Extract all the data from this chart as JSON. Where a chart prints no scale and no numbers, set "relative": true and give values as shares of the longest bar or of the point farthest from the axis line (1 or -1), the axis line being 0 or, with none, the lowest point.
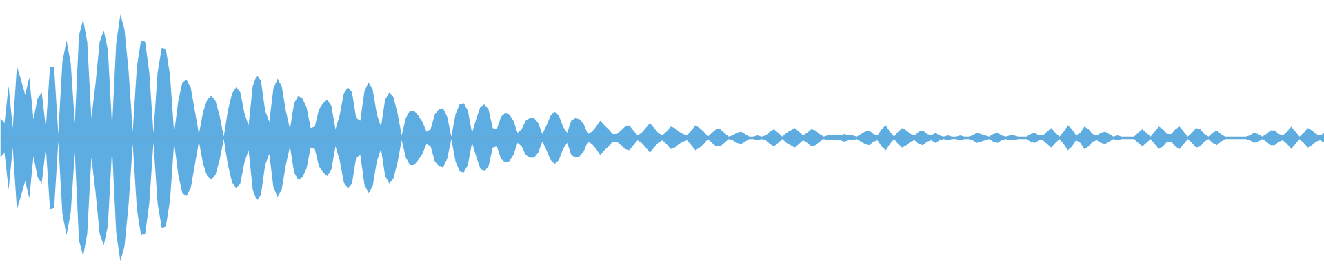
{
  "chart_data": {
    "type": "area",
    "relative": true,
    "tick_labels": false,
    "categories": [
      null,
      null,
      null,
      null,
      null,
      null,
      null,
      null,
      null,
      null,
      null,
      null,
      null,
      null,
      null,
      null,
      null,
      null,
      null,
      null,
      null,
      null,
      null,
      null,
      null,
      null,
      null,
      null,
      null,
      null,
      null,
      null,
      null,
      null,
      null,
      null,
      null,
      null,
      null,
      null,
      null,
      null,
      null,
      null,
      null,
      null,
      null,
      null,
      null,
      null,
      null,
      null,
      null,
      null,
      null,
      null,
      null,
      null,
      null,
      null,
      null,
      null,
      null,
      null,
      null,
      null,
      null,
      null,
      null,
      null,
      null,
      null,
      null,
      null,
      null,
      null,
      null,
      null,
      null,
      null,
      null,
      null,
      null,
      null,
      null,
      null,
      null,
      null,
      null,
      null,
      null,
      null,
      null,
      null,
      null,
      null,
      null,
      null,
      null,
      null,
      null,
      null,
      null,
      null,
      null,
      null,
      null,
      null,
      null,
      null,
      null,
      null,
      null,
      null,
      null,
      null,
      null,
      null,
      null,
      null,
      null,
      null,
      null,
      null,
      null,
      null,
      null,
      null,
      null,
      null,
      null,
      null,
      null,
      null,
      null,
      null,
      null,
      null,
      null,
      null,
      null,
      null,
      null,
      null,
      null,
      null,
      null,
      null,
      null,
      null,
      null,
      null,
      null,
      null,
      null,
      null,
      null,
      null,
      null,
      null,
      null,
      null,
      null,
      null,
      null,
      null,
      null,
      null,
      null,
      null,
      null,
      null,
      null,
      null,
      null,
      null,
      null,
      null,
      null,
      null,
      null,
      null,
      null,
      null,
      null,
      null,
      null,
      null,
      null,
      null,
      null,
      null,
      null,
      null,
      null,
      null,
      null,
      null,
      null,
      null,
      null,
      null,
      null,
      null,
      null,
      null,
      null,
      null,
      null,
      null,
      null,
      null,
      null,
      null,
      null,
      null,
      null,
      null,
      null,
      null,
      null,
      null,
      null,
      null,
      null,
      null,
      null,
      null,
      null,
      null,
      null,
      null,
      null,
      null,
      null,
      null,
      null,
      null,
      null,
      null,
      null,
      null,
      null,
      null,
      null,
      null,
      null,
      null,
      null,
      null,
      null,
      null,
      null,
      null,
      null,
      null,
      null,
      null,
      null,
      null,
      null,
      null,
      null,
      null,
      null,
      null,
      null,
      null,
      null,
      null,
      null,
      null,
      null,
      null,
      null,
      null,
      null,
      null,
      null,
      null,
      null,
      null,
      null,
      null,
      null,
      null,
      null,
      null,
      null,
      null,
      null,
      null,
      null,
      null,
      null,
      null,
      null,
      null,
      null,
      null,
      null,
      null,
      null,
      null,
      null,
      null,
      null,
      null,
      null,
      null,
      null,
      null,
      null,
      null,
      null,
      null,
      null,
      null,
      null,
      null,
      null
    ],
    "series": [
      {
        "color": "#5dade2",
        "values": [
          0.16,
          0.12,
          0.42,
          0.08,
          0.58,
          0.47,
          0.35,
          0.49,
          0.15,
          0.32,
          0.37,
          0.08,
          0.58,
          0.57,
          0.03,
          0.62,
          0.79,
          0.61,
          0.12,
          0.83,
          0.96,
          0.78,
          0.16,
          0.44,
          0.78,
          0.87,
          0.71,
          0.09,
          0.77,
          1.0,
          0.88,
          0.54,
          0.05,
          0.58,
          0.79,
          0.78,
          0.53,
          0.04,
          0.53,
          0.73,
          0.72,
          0.51,
          0.04,
          0.3,
          0.45,
          0.47,
          0.41,
          0.22,
          0.03,
          0.21,
          0.31,
          0.34,
          0.3,
          0.18,
          0.01,
          0.22,
          0.36,
          0.41,
          0.37,
          0.2,
          0.1,
          0.42,
          0.51,
          0.46,
          0.22,
          0.13,
          0.4,
          0.48,
          0.42,
          0.22,
          0.07,
          0.28,
          0.34,
          0.32,
          0.25,
          0.08,
          0.09,
          0.23,
          0.28,
          0.31,
          0.26,
          0.07,
          0.18,
          0.36,
          0.41,
          0.37,
          0.16,
          0.14,
          0.38,
          0.45,
          0.39,
          0.19,
          0.09,
          0.31,
          0.37,
          0.33,
          0.2,
          0.02,
          0.16,
          0.22,
          0.22,
          0.18,
          0.13,
          0.05,
          0.07,
          0.19,
          0.23,
          0.24,
          0.17,
          0.01,
          0.19,
          0.27,
          0.28,
          0.22,
          0.04,
          0.15,
          0.25,
          0.27,
          0.23,
          0.08,
          0.07,
          0.17,
          0.2,
          0.19,
          0.14,
          0.04,
          0.07,
          0.14,
          0.16,
          0.16,
          0.12,
          0.03,
          0.1,
          0.18,
          0.21,
          0.18,
          0.09,
          0.04,
          0.14,
          0.16,
          0.15,
          0.11,
          0.03,
          0.05,
          0.09,
          0.14,
          0.1,
          0.07,
          0.03,
          0.03,
          0.06,
          0.09,
          0.1,
          0.06,
          0.02,
          0.04,
          0.08,
          0.12,
          0.08,
          0.04,
          0.02,
          0.05,
          0.09,
          0.08,
          0.05,
          0.03,
          0.02,
          0.06,
          0.1,
          0.08,
          0.05,
          0.01,
          0.04,
          0.07,
          0.07,
          0.04,
          0.01,
          0.02,
          0.04,
          0.05,
          0.03,
          0.01,
          0.01,
          0.02,
          0.01,
          0.02,
          0.05,
          0.07,
          0.04,
          0.01,
          0.04,
          0.06,
          0.08,
          0.05,
          0.02,
          0.04,
          0.07,
          0.06,
          0.03,
          0.01,
          0.02,
          0.02,
          0.02,
          0.02,
          0.03,
          0.02,
          0.02,
          0.01,
          0.03,
          0.05,
          0.06,
          0.03,
          0.02,
          0.07,
          0.1,
          0.05,
          0.01,
          0.05,
          0.08,
          0.06,
          0.03,
          0.02,
          0.05,
          0.06,
          0.03,
          0.02,
          0.04,
          0.02,
          0.01,
          0.02,
          0.01,
          0.01,
          0.02,
          0.01,
          0.01,
          0.02,
          0.04,
          0.03,
          0.02,
          0.01,
          0.03,
          0.04,
          0.02,
          0.01,
          0.02,
          0.02,
          0.01,
          0.01,
          0.01,
          0.03,
          0.04,
          0.02,
          0.02,
          0.05,
          0.08,
          0.04,
          0.01,
          0.05,
          0.1,
          0.07,
          0.02,
          0.04,
          0.09,
          0.07,
          0.03,
          0.02,
          0.04,
          0.05,
          0.03,
          0.01,
          0.02,
          0.01,
          0.01,
          0.01,
          0.01,
          0.04,
          0.07,
          0.04,
          0.01,
          0.05,
          0.09,
          0.07,
          0.03,
          0.03,
          0.07,
          0.09,
          0.05,
          0.01,
          0.04,
          0.08,
          0.07,
          0.03,
          0.01,
          0.04,
          0.06,
          0.03,
          0.01,
          0.01,
          0.01,
          0.01,
          0.01,
          0.01,
          0.02,
          0.04,
          0.03,
          0.01,
          0.03,
          0.06,
          0.06,
          0.03,
          0.02,
          0.05,
          0.09,
          0.05,
          0.01,
          0.04,
          0.08,
          0.06,
          0.03,
          0.02,
          0.04
        ]
      },
      {
        "color": "#5eade2",
        "values": [
          -0.16,
          -0.12,
          -0.42,
          -0.08,
          -0.58,
          -0.47,
          -0.35,
          -0.49,
          -0.15,
          -0.32,
          -0.37,
          -0.08,
          -0.58,
          -0.57,
          -0.03,
          -0.62,
          -0.79,
          -0.61,
          -0.12,
          -0.83,
          -0.96,
          -0.78,
          -0.16,
          -0.44,
          -0.78,
          -0.87,
          -0.71,
          -0.09,
          -0.77,
          -1.0,
          -0.88,
          -0.54,
          -0.05,
          -0.58,
          -0.79,
          -0.78,
          -0.53,
          -0.04,
          -0.53,
          -0.73,
          -0.72,
          -0.51,
          -0.04,
          -0.3,
          -0.45,
          -0.47,
          -0.41,
          -0.22,
          -0.03,
          -0.21,
          -0.31,
          -0.34,
          -0.3,
          -0.18,
          -0.01,
          -0.22,
          -0.36,
          -0.41,
          -0.37,
          -0.2,
          -0.1,
          -0.42,
          -0.51,
          -0.46,
          -0.22,
          -0.13,
          -0.4,
          -0.48,
          -0.42,
          -0.22,
          -0.07,
          -0.28,
          -0.34,
          -0.32,
          -0.25,
          -0.08,
          -0.09,
          -0.23,
          -0.28,
          -0.31,
          -0.26,
          -0.07,
          -0.18,
          -0.36,
          -0.41,
          -0.37,
          -0.16,
          -0.14,
          -0.38,
          -0.45,
          -0.39,
          -0.19,
          -0.09,
          -0.31,
          -0.37,
          -0.33,
          -0.2,
          -0.02,
          -0.16,
          -0.22,
          -0.22,
          -0.18,
          -0.13,
          -0.05,
          -0.07,
          -0.19,
          -0.23,
          -0.24,
          -0.17,
          -0.01,
          -0.19,
          -0.27,
          -0.28,
          -0.22,
          -0.04,
          -0.15,
          -0.25,
          -0.27,
          -0.23,
          -0.08,
          -0.07,
          -0.17,
          -0.2,
          -0.19,
          -0.14,
          -0.04,
          -0.07,
          -0.14,
          -0.16,
          -0.16,
          -0.12,
          -0.03,
          -0.1,
          -0.18,
          -0.21,
          -0.18,
          -0.09,
          -0.04,
          -0.14,
          -0.16,
          -0.15,
          -0.11,
          -0.03,
          -0.05,
          -0.09,
          -0.14,
          -0.1,
          -0.07,
          -0.03,
          -0.03,
          -0.06,
          -0.09,
          -0.1,
          -0.06,
          -0.02,
          -0.04,
          -0.08,
          -0.12,
          -0.08,
          -0.04,
          -0.02,
          -0.05,
          -0.09,
          -0.08,
          -0.05,
          -0.03,
          -0.02,
          -0.06,
          -0.1,
          -0.08,
          -0.05,
          -0.01,
          -0.04,
          -0.07,
          -0.07,
          -0.04,
          -0.01,
          -0.02,
          -0.04,
          -0.05,
          -0.03,
          -0.01,
          -0.01,
          -0.02,
          -0.01,
          -0.02,
          -0.05,
          -0.07,
          -0.04,
          -0.01,
          -0.04,
          -0.06,
          -0.08,
          -0.05,
          -0.02,
          -0.04,
          -0.07,
          -0.06,
          -0.03,
          -0.01,
          -0.02,
          -0.02,
          -0.02,
          -0.02,
          -0.03,
          -0.02,
          -0.02,
          -0.01,
          -0.03,
          -0.05,
          -0.06,
          -0.03,
          -0.02,
          -0.07,
          -0.1,
          -0.05,
          -0.01,
          -0.05,
          -0.08,
          -0.06,
          -0.03,
          -0.02,
          -0.05,
          -0.06,
          -0.03,
          -0.02,
          -0.04,
          -0.02,
          -0.01,
          -0.02,
          -0.01,
          -0.01,
          -0.02,
          -0.01,
          -0.01,
          -0.02,
          -0.04,
          -0.03,
          -0.02,
          -0.01,
          -0.03,
          -0.04,
          -0.02,
          -0.01,
          -0.02,
          -0.02,
          -0.01,
          -0.01,
          -0.01,
          -0.03,
          -0.04,
          -0.02,
          -0.02,
          -0.05,
          -0.08,
          -0.04,
          -0.01,
          -0.05,
          -0.1,
          -0.07,
          -0.02,
          -0.04,
          -0.09,
          -0.07,
          -0.03,
          -0.02,
          -0.04,
          -0.05,
          -0.03,
          -0.01,
          -0.02,
          -0.01,
          -0.01,
          -0.01,
          -0.01,
          -0.04,
          -0.07,
          -0.04,
          -0.01,
          -0.05,
          -0.09,
          -0.07,
          -0.03,
          -0.03,
          -0.07,
          -0.09,
          -0.05,
          -0.01,
          -0.04,
          -0.08,
          -0.07,
          -0.03,
          -0.01,
          -0.04,
          -0.06,
          -0.03,
          -0.01,
          -0.01,
          -0.01,
          -0.01,
          -0.01,
          -0.01,
          -0.02,
          -0.04,
          -0.03,
          -0.01,
          -0.03,
          -0.06,
          -0.06,
          -0.03,
          -0.02,
          -0.05,
          -0.09,
          -0.05,
          -0.01,
          -0.04,
          -0.08,
          -0.06,
          -0.03,
          -0.02,
          -0.04
        ]
      }
    ]
  }
}
